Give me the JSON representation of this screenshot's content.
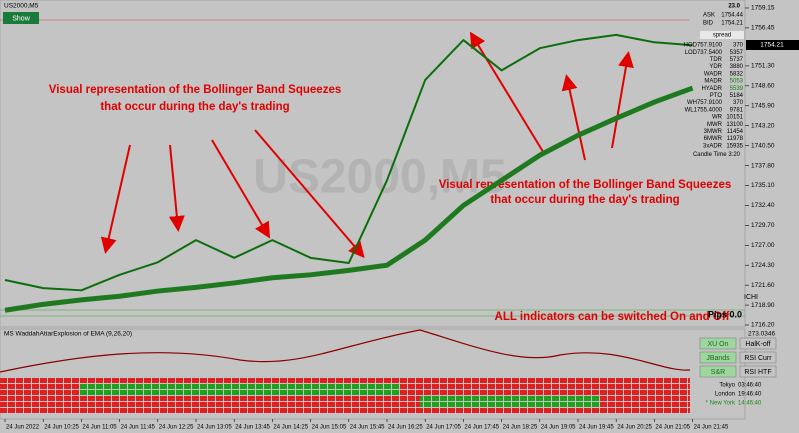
{
  "chart_data": {
    "type": "line",
    "categories": [
      "24 Jun 2022",
      "24 Jun 10:25",
      "24 Jun 11:05",
      "24 Jun 11:45",
      "24 Jun 12:25",
      "24 Jun 13:05",
      "24 Jun 13:45",
      "24 Jun 14:25",
      "24 Jun 15:05",
      "24 Jun 15:45",
      "24 Jun 16:25",
      "24 Jun 17:05",
      "24 Jun 17:45",
      "24 Jun 18:25",
      "24 Jun 19:05",
      "24 Jun 19:45",
      "24 Jun 20:25",
      "24 Jun 21:05",
      "24 Jun 21:45"
    ],
    "series": [
      {
        "color": "#0a6e0a",
        "width": 2,
        "values": [
          1722.3,
          1721.2,
          1720.9,
          1723.0,
          1724.7,
          1727.7,
          1725.3,
          1727.7,
          1725.3,
          1724.6,
          1735.8,
          1749.4,
          1754.8,
          1750.7,
          1753.7,
          1754.8,
          1755.5,
          1754.5,
          1754.1
        ]
      },
      {
        "color": "#1f7a1f",
        "width": 5,
        "values": [
          1718.2,
          1719.0,
          1719.6,
          1720.1,
          1720.8,
          1721.3,
          1721.9,
          1722.6,
          1723.0,
          1723.6,
          1724.3,
          1727.7,
          1732.4,
          1735.8,
          1739.2,
          1741.9,
          1744.2,
          1746.4,
          1748.3
        ]
      }
    ],
    "ylim": [
      1715.93,
      1760.23
    ],
    "yticks": [
      1759.15,
      1756.45,
      {
        "value": 1751.3,
        "label": "1751.30"
      },
      {
        "value": 1748.6,
        "label": "1748.60"
      },
      {
        "value": 1745.9,
        "label": "1745.90"
      },
      {
        "value": 1743.2,
        "label": "1743.20"
      },
      {
        "value": 1740.5,
        "label": "1740.50"
      },
      {
        "value": 1737.8,
        "label": "1737.80"
      },
      {
        "value": 1735.1,
        "label": "1735.10"
      },
      {
        "value": 1732.4,
        "label": "1732.40"
      },
      {
        "value": 1729.7,
        "label": "1729.70"
      },
      {
        "value": 1727.0,
        "label": "1727.00"
      },
      {
        "value": 1724.3,
        "label": "1724.30"
      },
      {
        "value": 1721.6,
        "label": "1721.60"
      },
      {
        "value": 1718.9,
        "label": "1718.90"
      },
      {
        "value": 1716.2,
        "label": "1716.20"
      }
    ]
  },
  "header": {
    "symbol": "US2000,M5",
    "show_button": "Show",
    "watermark": "US2000,M5",
    "price_box": "1754.21"
  },
  "annotations": {
    "left": [
      "Visual representation of the Bollinger Band Squeezes",
      "that occur during the day's trading"
    ],
    "right": [
      "Visual representation of the Bollinger Band Squeezes",
      "that occur during the day's trading"
    ],
    "switch_note": "ALL indicators can be switched On and Off"
  },
  "info_panel": {
    "counter": "23.0",
    "ask_label": "ASK",
    "ask": "1754.44",
    "bid_label": "BID",
    "bid": "1754.21",
    "spread": "spread",
    "rows": [
      [
        "HOD757.9100",
        "370"
      ],
      [
        "LOD737.5400",
        "5357"
      ],
      [
        "TDR",
        "5737"
      ],
      [
        "YDR",
        "3880"
      ],
      [
        "WADR",
        "5832"
      ],
      [
        "MADR",
        "5053"
      ],
      [
        "HYADR",
        "5539"
      ],
      [
        "PTO",
        "5184"
      ],
      [
        "WH757.9100",
        "370"
      ],
      [
        "WL1755.4000",
        "9781"
      ],
      [
        "WR",
        "10151"
      ],
      [
        "MWR",
        "13100"
      ],
      [
        "3MWR",
        "11454"
      ],
      [
        "6MWR",
        "11978"
      ],
      [
        "3xADR",
        "15935"
      ]
    ],
    "candle_time_label": "Candle Time",
    "candle_time": "3:20",
    "ichi": "ICHI",
    "pips": "Pips 0.0"
  },
  "indicator": {
    "title": "MS WaddahAttarExplosion of EMA (9,26,20)",
    "scale": "273.0346"
  },
  "buttons": [
    "XU On",
    "HalK-off",
    "JBands",
    "RSI Curr",
    "S&R",
    "RSI HTF"
  ],
  "sessions": [
    [
      "Tokyo",
      "03:46:40"
    ],
    [
      "London",
      "19:46:40"
    ],
    [
      "* New York",
      "14:46:40"
    ]
  ]
}
